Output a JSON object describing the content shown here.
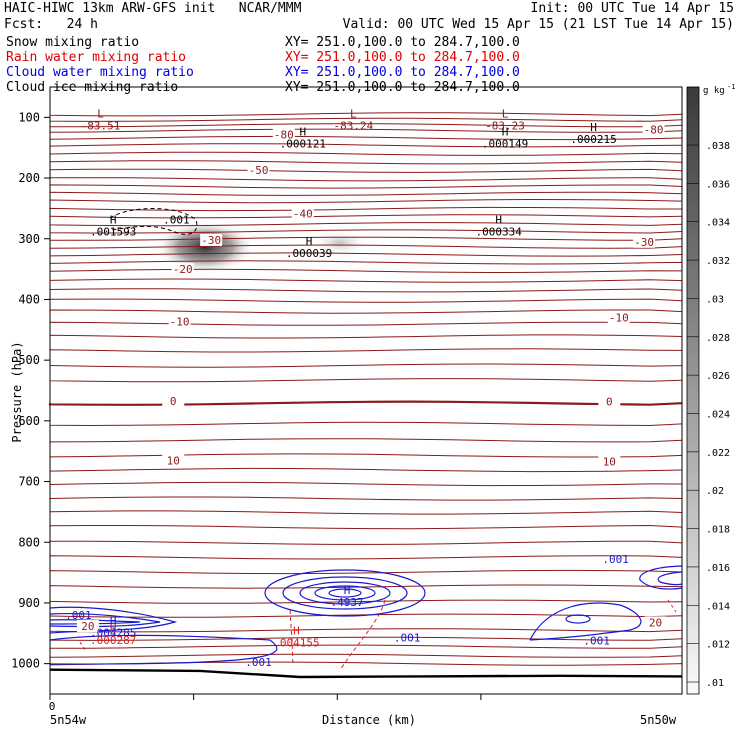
{
  "header": {
    "title": "HAIC-HIWC 13km ARW-GFS init   NCAR/MMM",
    "init": "Init: 00 UTC Tue 14 Apr 15",
    "fcst": "Fcst:   24 h",
    "valid": "Valid: 00 UTC Wed 15 Apr 15 (21 LST Tue 14 Apr 15)",
    "fields": [
      {
        "name": "Snow mixing ratio",
        "xy": "XY= 251.0,100.0 to 284.7,100.0",
        "color": "#000000"
      },
      {
        "name": "Rain water mixing ratio",
        "xy": "XY= 251.0,100.0 to 284.7,100.0",
        "color": "#e00000"
      },
      {
        "name": "Cloud water mixing ratio",
        "xy": "XY= 251.0,100.0 to 284.7,100.0",
        "color": "#0000e0"
      },
      {
        "name": "Cloud ice mixing ratio",
        "xy": "XY= 251.0,100.0 to 284.7,100.0",
        "color": "#000000"
      }
    ]
  },
  "colors": {
    "temperature": "#8b1a1a",
    "cloud_water": "#1a1ad0",
    "rain": "#e02020",
    "terrain": "#000000"
  },
  "chart_data": {
    "type": "contour-cross-section",
    "ylabel": "Pressure (hPa)",
    "xlabel": "Distance (km)",
    "x_tick_labels": [
      "0"
    ],
    "x_endpoints": [
      "5n54w",
      "5n50w"
    ],
    "y_ticks": [
      100,
      200,
      300,
      400,
      500,
      600,
      700,
      800,
      900,
      1000
    ],
    "y_range": [
      1050,
      50
    ],
    "x_range": [
      0,
      1
    ],
    "colorbar": {
      "unit": "g kg",
      "unit_exp": "-1",
      "ticks": [
        ".038",
        ".036",
        ".034",
        ".032",
        ".03",
        ".028",
        ".026",
        ".024",
        ".022",
        ".02",
        ".018",
        ".016",
        ".014",
        ".012",
        ".01"
      ]
    },
    "temperature_labels": [
      {
        "text": "-80",
        "x": 0.37,
        "p": 128
      },
      {
        "text": "-80",
        "x": 0.955,
        "p": 120
      },
      {
        "text": "-50",
        "x": 0.33,
        "p": 187
      },
      {
        "text": "-40",
        "x": 0.4,
        "p": 258
      },
      {
        "text": "-30",
        "x": 0.255,
        "p": 302
      },
      {
        "text": "-30",
        "x": 0.94,
        "p": 305
      },
      {
        "text": "-20",
        "x": 0.21,
        "p": 350
      },
      {
        "text": "-10",
        "x": 0.205,
        "p": 436
      },
      {
        "text": "-10",
        "x": 0.9,
        "p": 430
      },
      {
        "text": "0",
        "x": 0.195,
        "p": 567
      },
      {
        "text": "0",
        "x": 0.885,
        "p": 568
      },
      {
        "text": "10",
        "x": 0.195,
        "p": 665
      },
      {
        "text": "10",
        "x": 0.885,
        "p": 667
      },
      {
        "text": "20",
        "x": 0.06,
        "p": 938
      },
      {
        "text": "20",
        "x": 0.958,
        "p": 932
      }
    ],
    "extrema_labels": [
      {
        "mark": "L",
        "value": "-83.51",
        "x": 0.08,
        "p": 110,
        "color": "#8b1a1a"
      },
      {
        "mark": "L",
        "value": "-83.24",
        "x": 0.48,
        "p": 110,
        "color": "#8b1a1a"
      },
      {
        "mark": "L",
        "value": "-83.23",
        "x": 0.72,
        "p": 110,
        "color": "#8b1a1a"
      },
      {
        "mark": "H",
        "value": ".000121",
        "x": 0.4,
        "p": 140,
        "color": "#000000"
      },
      {
        "mark": "H",
        "value": ".000149",
        "x": 0.72,
        "p": 140,
        "color": "#000000"
      },
      {
        "mark": "H",
        "value": ".000215",
        "x": 0.86,
        "p": 132,
        "color": "#000000"
      },
      {
        "mark": "H",
        "value": ".001593",
        "x": 0.1,
        "p": 285,
        "color": "#000000"
      },
      {
        "mark": "H",
        "value": ".000039",
        "x": 0.41,
        "p": 320,
        "color": "#000000"
      },
      {
        "mark": "H",
        "value": ".000334",
        "x": 0.71,
        "p": 285,
        "color": "#000000"
      },
      {
        "mark": "H",
        "value": ".4937",
        "x": 0.47,
        "p": 895,
        "color": "#1a1ad0"
      },
      {
        "mark": "H",
        "value": ".004285",
        "x": 0.1,
        "p": 945,
        "color": "#1a1ad0"
      },
      {
        "mark": "H",
        "value": ".000287",
        "x": 0.1,
        "p": 958,
        "color": "#e02020"
      },
      {
        "mark": "H",
        "value": ".004155",
        "x": 0.39,
        "p": 962,
        "color": "#e02020"
      }
    ],
    "contour_value_labels": [
      {
        "text": ".001",
        "x": 0.2,
        "p": 268,
        "color": "#000000"
      },
      {
        "text": ".001",
        "x": 0.045,
        "p": 920,
        "color": "#1a1ad0"
      },
      {
        "text": ".001",
        "x": 0.565,
        "p": 957,
        "color": "#1a1ad0"
      },
      {
        "text": ".001",
        "x": 0.865,
        "p": 962,
        "color": "#1a1ad0"
      },
      {
        "text": ".001",
        "x": 0.33,
        "p": 997,
        "color": "#1a1ad0"
      },
      {
        "text": ".001",
        "x": 0.895,
        "p": 828,
        "color": "#1a1ad0"
      }
    ]
  }
}
